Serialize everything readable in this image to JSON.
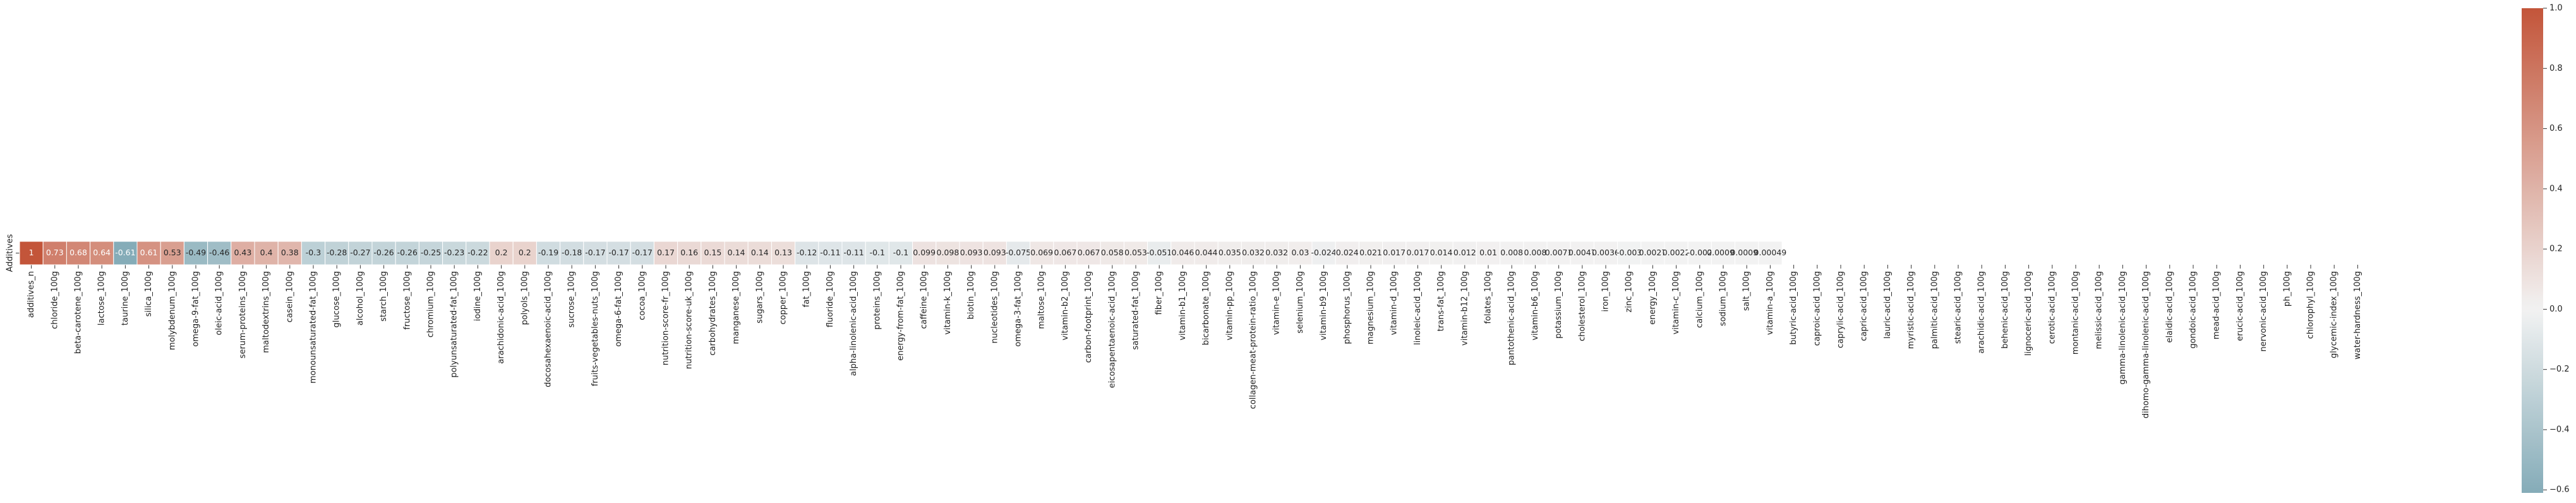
{
  "chart_data": {
    "type": "heatmap",
    "rows": [
      "Additives"
    ],
    "categories": [
      "additives_n",
      "chloride_100g",
      "beta-carotene_100g",
      "lactose_100g",
      "taurine_100g",
      "silica_100g",
      "molybdenum_100g",
      "omega-9-fat_100g",
      "oleic-acid_100g",
      "serum-proteins_100g",
      "maltodextrins_100g",
      "casein_100g",
      "monounsaturated-fat_100g",
      "glucose_100g",
      "alcohol_100g",
      "starch_100g",
      "fructose_100g",
      "chromium_100g",
      "polyunsaturated-fat_100g",
      "iodine_100g",
      "arachidonic-acid_100g",
      "polyols_100g",
      "docosahexaenoic-acid_100g",
      "sucrose_100g",
      "fruits-vegetables-nuts_100g",
      "omega-6-fat_100g",
      "cocoa_100g",
      "nutrition-score-fr_100g",
      "nutrition-score-uk_100g",
      "carbohydrates_100g",
      "manganese_100g",
      "sugars_100g",
      "copper_100g",
      "fat_100g",
      "fluoride_100g",
      "alpha-linolenic-acid_100g",
      "proteins_100g",
      "energy-from-fat_100g",
      "caffeine_100g",
      "vitamin-k_100g",
      "biotin_100g",
      "nucleotides_100g",
      "omega-3-fat_100g",
      "maltose_100g",
      "vitamin-b2_100g",
      "carbon-footprint_100g",
      "eicosapentaenoic-acid_100g",
      "saturated-fat_100g",
      "fiber_100g",
      "vitamin-b1_100g",
      "bicarbonate_100g",
      "vitamin-pp_100g",
      "collagen-meat-protein-ratio_100g",
      "vitamin-e_100g",
      "selenium_100g",
      "vitamin-b9_100g",
      "phosphorus_100g",
      "magnesium_100g",
      "vitamin-d_100g",
      "linoleic-acid_100g",
      "trans-fat_100g",
      "vitamin-b12_100g",
      "folates_100g",
      "pantothenic-acid_100g",
      "vitamin-b6_100g",
      "potassium_100g",
      "cholesterol_100g",
      "iron_100g",
      "zinc_100g",
      "energy_100g",
      "vitamin-c_100g",
      "calcium_100g",
      "sodium_100g",
      "salt_100g",
      "vitamin-a_100g",
      "butyric-acid_100g",
      "caproic-acid_100g",
      "caprylic-acid_100g",
      "capric-acid_100g",
      "lauric-acid_100g",
      "myristic-acid_100g",
      "palmitic-acid_100g",
      "stearic-acid_100g",
      "arachidic-acid_100g",
      "behenic-acid_100g",
      "lignoceric-acid_100g",
      "cerotic-acid_100g",
      "montanic-acid_100g",
      "melissic-acid_100g",
      "gamma-linolenic-acid_100g",
      "dihomo-gamma-linolenic-acid_100g",
      "elaidic-acid_100g",
      "gondoic-acid_100g",
      "mead-acid_100g",
      "erucic-acid_100g",
      "nervonic-acid_100g",
      "ph_100g",
      "chlorophyl_100g",
      "glycemic-index_100g",
      "water-hardness_100g"
    ],
    "values": [
      1,
      0.73,
      0.68,
      0.64,
      -0.61,
      0.61,
      0.53,
      -0.49,
      -0.46,
      0.43,
      0.4,
      0.38,
      -0.3,
      -0.28,
      -0.27,
      -0.26,
      -0.26,
      -0.25,
      -0.23,
      -0.22,
      0.2,
      0.2,
      -0.19,
      -0.18,
      -0.17,
      -0.17,
      -0.17,
      0.17,
      0.16,
      0.15,
      0.14,
      0.14,
      0.13,
      -0.12,
      -0.11,
      -0.11,
      -0.1,
      -0.1,
      0.099,
      0.098,
      0.093,
      0.093,
      -0.075,
      0.069,
      0.067,
      0.067,
      0.058,
      0.053,
      -0.051,
      0.046,
      0.044,
      0.035,
      0.032,
      0.032,
      0.03,
      -0.024,
      0.024,
      0.021,
      0.017,
      0.017,
      0.014,
      0.012,
      0.01,
      0.008,
      0.008,
      0.0071,
      0.0047,
      0.0036,
      -0.003,
      0.0027,
      0.0022,
      -0.002,
      0.00095,
      0.00095,
      0.00049,
      null,
      null,
      null,
      null,
      null,
      null,
      null,
      null,
      null,
      null,
      null,
      null,
      null,
      null,
      null,
      null,
      null,
      null,
      null,
      null,
      null,
      null,
      null,
      null,
      null
    ],
    "colormap": [
      "#3f7f93",
      "#f2f2f2",
      "#c3553a"
    ],
    "center": 0,
    "clim": [
      -0.61,
      1
    ],
    "cbar_ticks": [
      {
        "value": -0.6,
        "label": "−0.6"
      },
      {
        "value": -0.4,
        "label": "−0.4"
      },
      {
        "value": -0.2,
        "label": "−0.2"
      },
      {
        "value": 0,
        "label": "0.0"
      },
      0.2,
      0.4,
      0.6,
      0.8,
      {
        "value": 1,
        "label": "1.0"
      }
    ]
  }
}
